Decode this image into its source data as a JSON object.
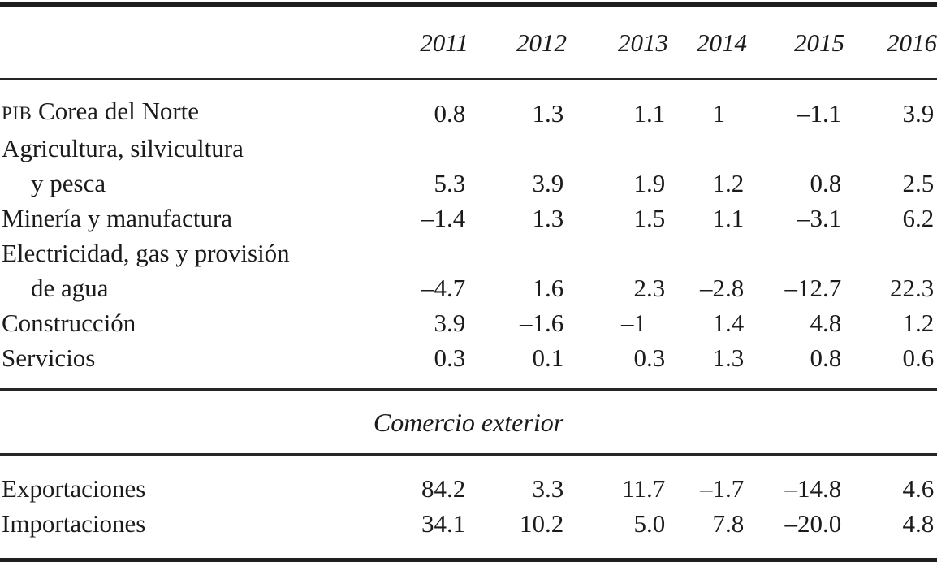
{
  "table": {
    "col_headers": [
      "2011",
      "2012",
      "2013",
      "2014",
      "2015",
      "2016"
    ],
    "sections": [
      {
        "rows": [
          {
            "label_prefix": "PIB",
            "label": "Corea del Norte",
            "values": [
              "0.8",
              "1.3",
              "1.1",
              "1",
              "–1.1",
              "3.9"
            ]
          },
          {
            "label": "Agricultura, silvicultura",
            "label2": "y pesca",
            "values": [
              "5.3",
              "3.9",
              "1.9",
              "1.2",
              "0.8",
              "2.5"
            ]
          },
          {
            "label": "Minería y manufactura",
            "values": [
              "–1.4",
              "1.3",
              "1.5",
              "1.1",
              "–3.1",
              "6.2"
            ]
          },
          {
            "label": "Electricidad, gas y provisión",
            "label2": "de agua",
            "values": [
              "–4.7",
              "1.6",
              "2.3",
              "–2.8",
              "–12.7",
              "22.3"
            ]
          },
          {
            "label": "Construcción",
            "values": [
              "3.9",
              "–1.6",
              "–1",
              "1.4",
              "4.8",
              "1.2"
            ]
          },
          {
            "label": "Servicios",
            "values": [
              "0.3",
              "0.1",
              "0.3",
              "1.3",
              "0.8",
              "0.6"
            ]
          }
        ]
      },
      {
        "section_title": "Comercio exterior",
        "rows": [
          {
            "label": "Exportaciones",
            "values": [
              "84.2",
              "3.3",
              "11.7",
              "–1.7",
              "–14.8",
              "4.6"
            ]
          },
          {
            "label": "Importaciones",
            "values": [
              "34.1",
              "10.2",
              "5.0",
              "7.8",
              "–20.0",
              "4.8"
            ]
          }
        ]
      }
    ]
  }
}
